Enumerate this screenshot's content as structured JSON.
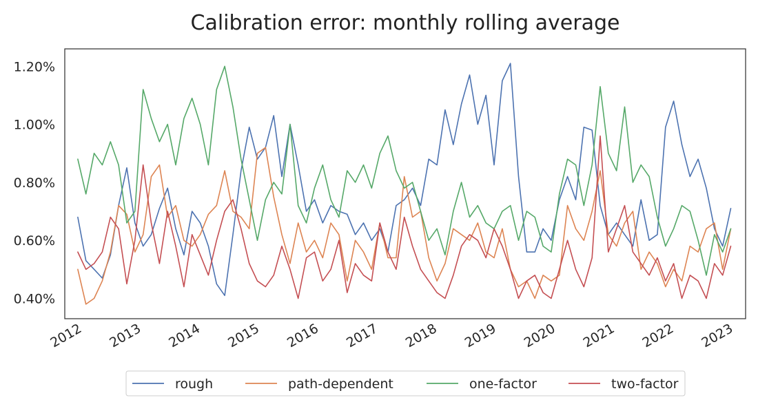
{
  "chart_data": {
    "type": "line",
    "title": "Calibration error: monthly rolling average",
    "xlabel": "",
    "ylabel": "",
    "x_start": 2011.92,
    "x_end": 2022.95,
    "xlim": [
      2011.7,
      2023.2
    ],
    "ylim": [
      0.33,
      1.26
    ],
    "x_ticks": [
      2012,
      2013,
      2014,
      2015,
      2016,
      2017,
      2018,
      2019,
      2020,
      2021,
      2022,
      2023
    ],
    "x_tick_labels": [
      "2012",
      "2013",
      "2014",
      "2015",
      "2016",
      "2017",
      "2018",
      "2019",
      "2020",
      "2021",
      "2022",
      "2023"
    ],
    "y_ticks": [
      0.4,
      0.6,
      0.8,
      1.0,
      1.2
    ],
    "y_tick_labels": [
      "0.40%",
      "0.60%",
      "0.80%",
      "1.00%",
      "1.20%"
    ],
    "grid": false,
    "legend_position": "bottom-center",
    "series": [
      {
        "name": "rough",
        "color": "#4c72b0",
        "values": [
          0.68,
          0.53,
          0.5,
          0.47,
          0.55,
          0.72,
          0.85,
          0.66,
          0.58,
          0.62,
          0.71,
          0.78,
          0.64,
          0.55,
          0.7,
          0.66,
          0.58,
          0.45,
          0.41,
          0.62,
          0.84,
          0.99,
          0.88,
          0.92,
          1.03,
          0.82,
          1.0,
          0.86,
          0.7,
          0.74,
          0.66,
          0.72,
          0.7,
          0.69,
          0.62,
          0.66,
          0.6,
          0.64,
          0.56,
          0.72,
          0.74,
          0.78,
          0.72,
          0.88,
          0.86,
          1.05,
          0.93,
          1.07,
          1.17,
          1.0,
          1.1,
          0.86,
          1.15,
          1.21,
          0.82,
          0.56,
          0.56,
          0.64,
          0.6,
          0.74,
          0.82,
          0.74,
          0.99,
          0.98,
          0.72,
          0.62,
          0.66,
          0.62,
          0.58,
          0.74,
          0.6,
          0.62,
          0.99,
          1.08,
          0.93,
          0.82,
          0.88,
          0.78,
          0.64,
          0.58,
          0.71
        ]
      },
      {
        "name": "path-dependent",
        "color": "#dd8452",
        "values": [
          0.5,
          0.38,
          0.4,
          0.46,
          0.56,
          0.72,
          0.69,
          0.56,
          0.62,
          0.82,
          0.86,
          0.68,
          0.72,
          0.6,
          0.58,
          0.62,
          0.69,
          0.72,
          0.84,
          0.7,
          0.68,
          0.64,
          0.9,
          0.92,
          0.75,
          0.62,
          0.52,
          0.66,
          0.56,
          0.6,
          0.54,
          0.66,
          0.62,
          0.46,
          0.6,
          0.56,
          0.5,
          0.66,
          0.54,
          0.54,
          0.82,
          0.68,
          0.7,
          0.54,
          0.46,
          0.52,
          0.64,
          0.62,
          0.6,
          0.66,
          0.56,
          0.54,
          0.64,
          0.5,
          0.44,
          0.46,
          0.4,
          0.48,
          0.46,
          0.48,
          0.72,
          0.64,
          0.6,
          0.7,
          0.84,
          0.62,
          0.58,
          0.66,
          0.7,
          0.5,
          0.56,
          0.52,
          0.44,
          0.5,
          0.46,
          0.58,
          0.56,
          0.64,
          0.66,
          0.5,
          0.64
        ]
      },
      {
        "name": "one-factor",
        "color": "#55a868",
        "values": [
          0.88,
          0.76,
          0.9,
          0.86,
          0.94,
          0.86,
          0.66,
          0.7,
          1.12,
          1.02,
          0.94,
          1.0,
          0.86,
          1.02,
          1.09,
          1.0,
          0.86,
          1.12,
          1.2,
          1.06,
          0.88,
          0.74,
          0.6,
          0.74,
          0.8,
          0.76,
          1.0,
          0.72,
          0.66,
          0.78,
          0.86,
          0.74,
          0.68,
          0.84,
          0.8,
          0.86,
          0.78,
          0.9,
          0.96,
          0.84,
          0.78,
          0.8,
          0.7,
          0.6,
          0.64,
          0.55,
          0.7,
          0.8,
          0.68,
          0.72,
          0.66,
          0.64,
          0.7,
          0.72,
          0.6,
          0.7,
          0.68,
          0.58,
          0.56,
          0.76,
          0.88,
          0.86,
          0.72,
          0.86,
          1.13,
          0.9,
          0.84,
          1.06,
          0.8,
          0.86,
          0.82,
          0.68,
          0.58,
          0.64,
          0.72,
          0.7,
          0.6,
          0.48,
          0.62,
          0.56,
          0.64
        ]
      },
      {
        "name": "two-factor",
        "color": "#c44e52",
        "values": [
          0.56,
          0.5,
          0.52,
          0.56,
          0.68,
          0.64,
          0.45,
          0.6,
          0.86,
          0.66,
          0.52,
          0.7,
          0.58,
          0.44,
          0.62,
          0.55,
          0.48,
          0.6,
          0.7,
          0.74,
          0.64,
          0.52,
          0.46,
          0.44,
          0.48,
          0.58,
          0.5,
          0.4,
          0.54,
          0.56,
          0.46,
          0.5,
          0.6,
          0.42,
          0.52,
          0.48,
          0.46,
          0.66,
          0.56,
          0.5,
          0.68,
          0.58,
          0.5,
          0.46,
          0.42,
          0.4,
          0.48,
          0.58,
          0.62,
          0.6,
          0.54,
          0.64,
          0.58,
          0.5,
          0.4,
          0.46,
          0.48,
          0.42,
          0.4,
          0.5,
          0.6,
          0.5,
          0.44,
          0.54,
          0.96,
          0.56,
          0.64,
          0.72,
          0.56,
          0.52,
          0.48,
          0.54,
          0.46,
          0.52,
          0.4,
          0.48,
          0.46,
          0.4,
          0.52,
          0.48,
          0.58
        ]
      }
    ]
  }
}
